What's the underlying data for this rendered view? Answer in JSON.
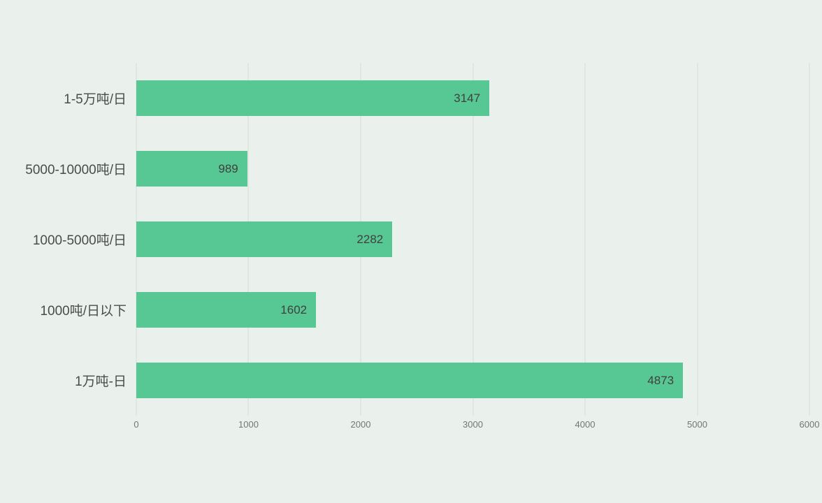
{
  "chart_data": {
    "type": "bar",
    "orientation": "horizontal",
    "title": "",
    "xlabel": "",
    "ylabel": "",
    "categories": [
      "1-5万吨/日",
      "5000-10000吨/日",
      "1000-5000吨/日",
      "1000吨/日以下",
      "1万吨-日"
    ],
    "values": [
      3147,
      989,
      2282,
      1602,
      4873
    ],
    "xlim": [
      0,
      6000
    ],
    "x_ticks": [
      0,
      1000,
      2000,
      3000,
      4000,
      5000,
      6000
    ],
    "grid": "vertical-only",
    "legend_position": "none",
    "value_labels_position": "inside-end",
    "colors": {
      "bar": "#57c793",
      "background": "#eaf1ed",
      "gridline": "#d6dad6",
      "category_label": "#4b4b4b",
      "value_label": "#404040",
      "tick_label": "#75756f"
    }
  }
}
